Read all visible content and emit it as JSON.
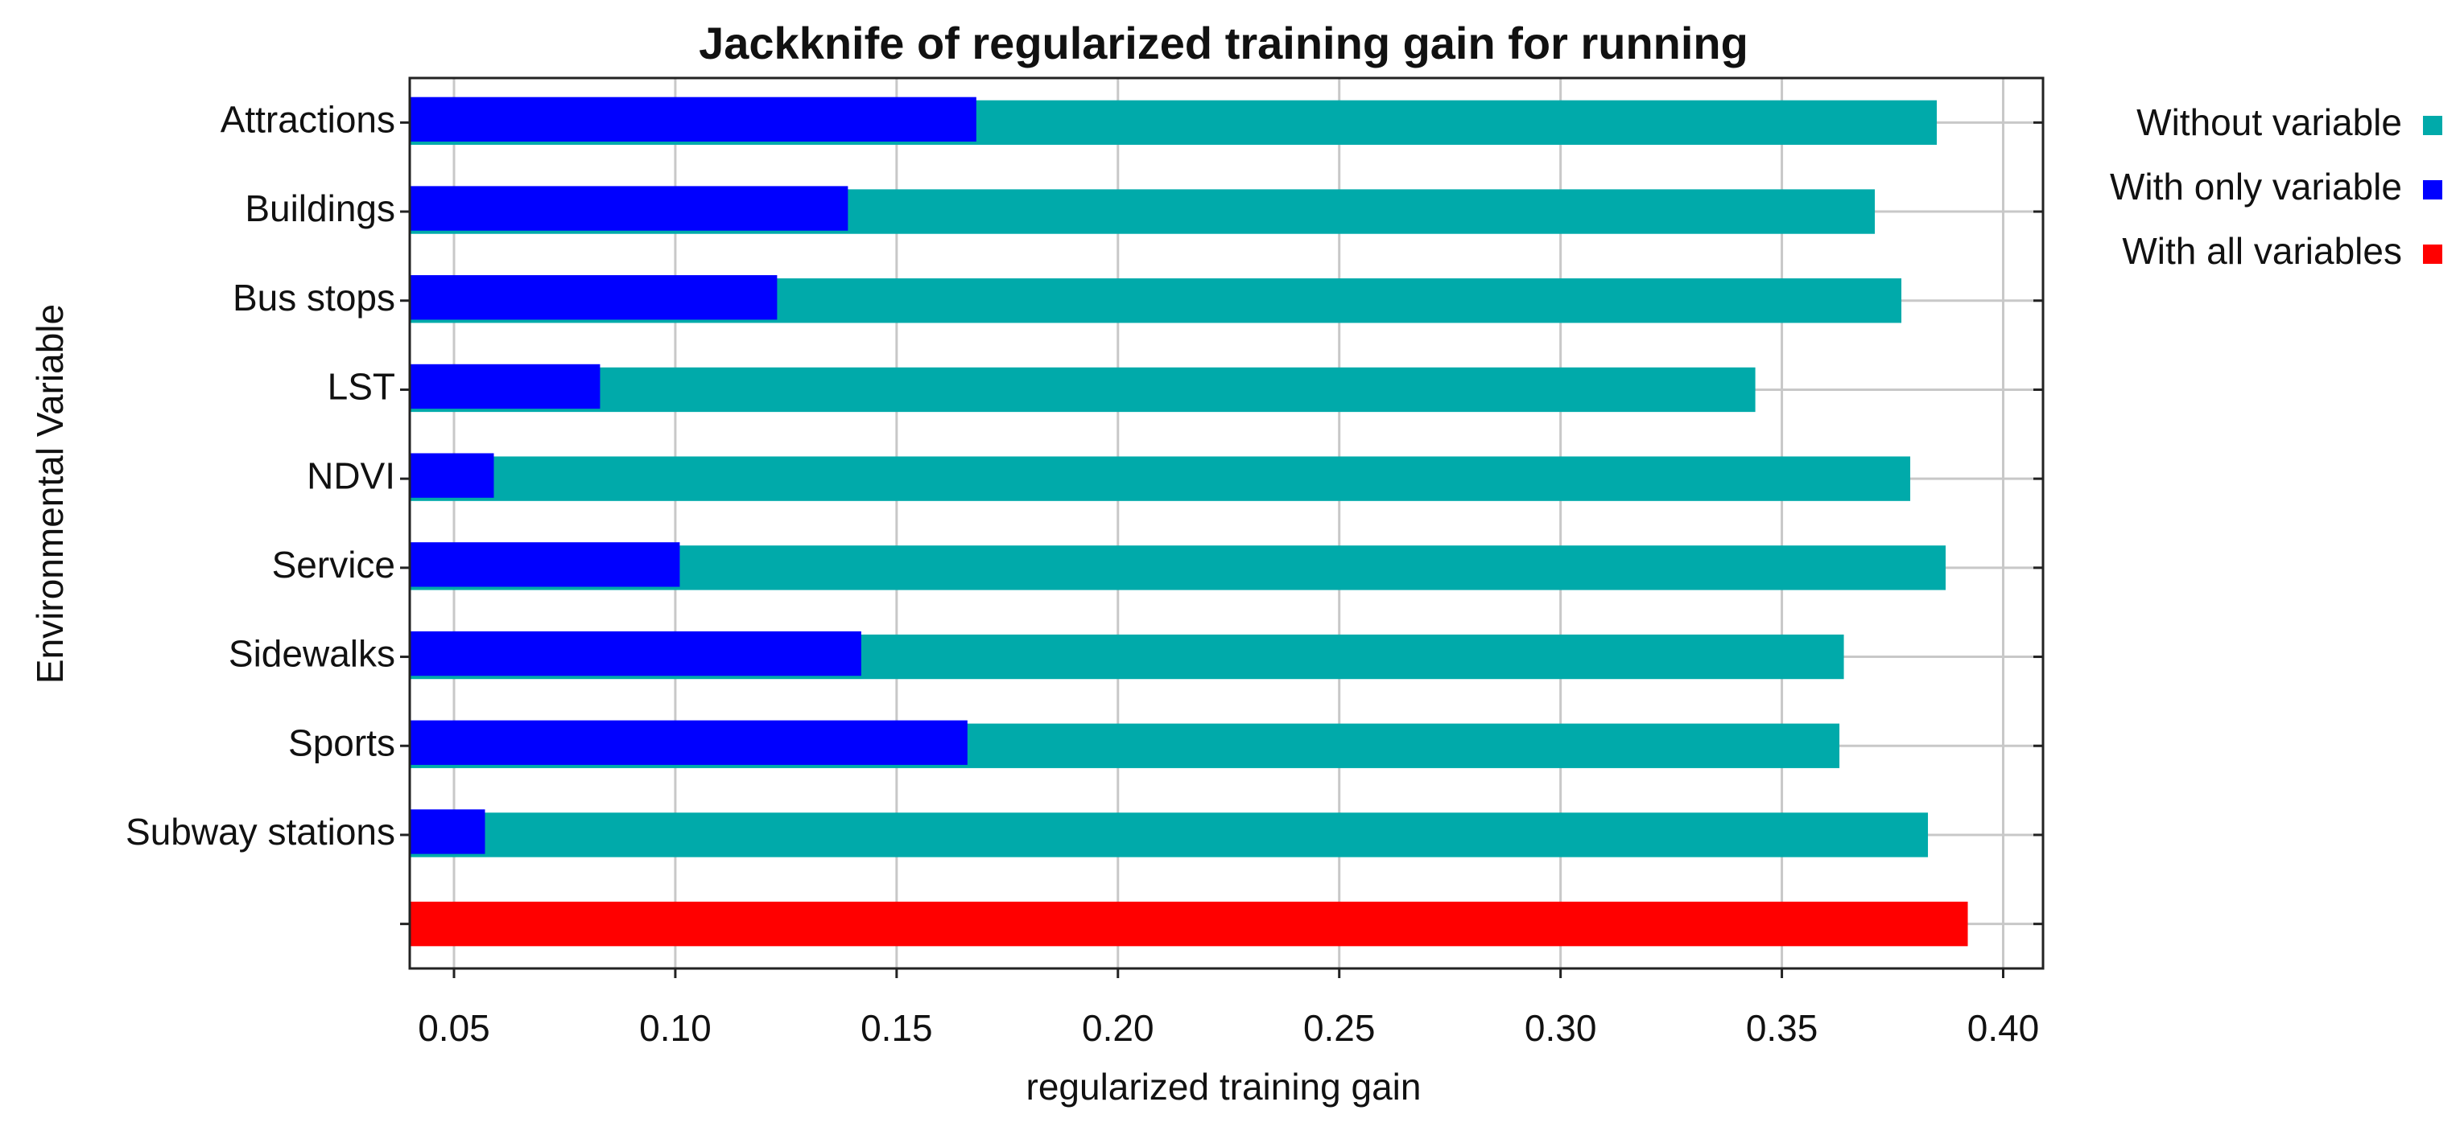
{
  "chart_data": {
    "type": "hbar",
    "title": "Jackknife of regularized training gain for running",
    "xlabel": "regularized training gain",
    "ylabel": "Environmental Variable",
    "categories": [
      "Attractions",
      "Buildings",
      "Bus stops",
      "LST",
      "NDVI",
      "Service",
      "Sidewalks",
      "Sports",
      "Subway stations",
      null
    ],
    "series": [
      {
        "name": "Without variable",
        "color": "#00aaaa",
        "values": [
          0.385,
          0.371,
          0.377,
          0.344,
          0.379,
          0.387,
          0.364,
          0.363,
          0.383,
          null
        ]
      },
      {
        "name": "With only variable",
        "color": "#0000ff",
        "values": [
          0.168,
          0.139,
          0.123,
          0.083,
          0.059,
          0.101,
          0.142,
          0.166,
          0.057,
          null
        ]
      },
      {
        "name": "With all variables",
        "color": "#ff0000",
        "values": [
          null,
          null,
          null,
          null,
          null,
          null,
          null,
          null,
          null,
          0.392
        ]
      }
    ],
    "xlim": [
      0.04,
      0.409
    ],
    "xticks": [
      0.05,
      {
        "value": 0.1,
        "label": "0.10"
      },
      0.15,
      {
        "value": 0.2,
        "label": "0.20"
      },
      0.25,
      {
        "value": 0.3,
        "label": "0.30"
      },
      0.35,
      {
        "value": 0.4,
        "label": "0.40"
      }
    ],
    "grid": true,
    "legend": "right"
  }
}
